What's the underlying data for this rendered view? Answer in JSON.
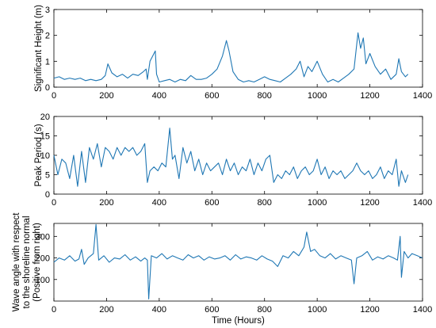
{
  "chart_data": [
    {
      "type": "line",
      "title": "",
      "xlabel": "",
      "ylabel": "Significant Height (m)",
      "xlim": [
        0,
        1400
      ],
      "ylim": [
        0,
        3
      ],
      "xticks": [
        0,
        200,
        400,
        600,
        800,
        1000,
        1200,
        1400
      ],
      "yticks": [
        0,
        1,
        2,
        3
      ],
      "grid": false,
      "color": "#1f77b4",
      "series": [
        {
          "x": [
            0,
            20,
            40,
            60,
            80,
            100,
            120,
            140,
            160,
            180,
            195,
            205,
            220,
            240,
            260,
            280,
            300,
            320,
            340,
            350,
            355,
            365,
            375,
            385,
            390,
            400,
            420,
            440,
            460,
            480,
            500,
            520,
            540,
            560,
            580,
            600,
            620,
            640,
            655,
            665,
            680,
            700,
            720,
            740,
            760,
            780,
            800,
            820,
            840,
            860,
            880,
            900,
            920,
            935,
            950,
            965,
            980,
            1000,
            1020,
            1040,
            1060,
            1080,
            1100,
            1120,
            1140,
            1155,
            1165,
            1175,
            1185,
            1200,
            1220,
            1240,
            1260,
            1280,
            1300,
            1310,
            1320,
            1335,
            1345
          ],
          "y": [
            0.35,
            0.4,
            0.3,
            0.35,
            0.3,
            0.35,
            0.25,
            0.3,
            0.25,
            0.3,
            0.45,
            0.9,
            0.55,
            0.4,
            0.5,
            0.35,
            0.5,
            0.45,
            0.6,
            0.7,
            0.3,
            1.0,
            1.2,
            1.4,
            0.5,
            0.2,
            0.25,
            0.3,
            0.2,
            0.3,
            0.25,
            0.45,
            0.3,
            0.3,
            0.35,
            0.5,
            0.7,
            1.2,
            1.8,
            1.4,
            0.6,
            0.3,
            0.2,
            0.25,
            0.2,
            0.3,
            0.4,
            0.3,
            0.25,
            0.2,
            0.35,
            0.5,
            0.7,
            1.0,
            0.4,
            0.8,
            0.6,
            1.0,
            0.5,
            0.2,
            0.3,
            0.2,
            0.35,
            0.5,
            0.7,
            2.1,
            1.5,
            1.9,
            0.9,
            1.3,
            0.8,
            0.5,
            0.7,
            0.3,
            0.5,
            1.1,
            0.6,
            0.4,
            0.5
          ]
        }
      ]
    },
    {
      "type": "line",
      "title": "",
      "xlabel": "",
      "ylabel": "Peak Period (s)",
      "xlim": [
        0,
        1400
      ],
      "ylim": [
        0,
        20
      ],
      "xticks": [
        0,
        200,
        400,
        600,
        800,
        1000,
        1200,
        1400
      ],
      "yticks": [
        0,
        5,
        10,
        15,
        20
      ],
      "grid": false,
      "color": "#1f77b4",
      "series": [
        {
          "x": [
            0,
            15,
            30,
            45,
            60,
            75,
            90,
            105,
            120,
            135,
            150,
            165,
            180,
            195,
            210,
            225,
            240,
            255,
            270,
            285,
            300,
            315,
            330,
            345,
            355,
            365,
            380,
            395,
            410,
            425,
            440,
            450,
            460,
            475,
            490,
            505,
            520,
            535,
            550,
            565,
            580,
            595,
            610,
            625,
            640,
            655,
            670,
            685,
            700,
            715,
            730,
            745,
            760,
            775,
            790,
            805,
            820,
            835,
            850,
            865,
            880,
            895,
            910,
            925,
            940,
            955,
            970,
            985,
            1000,
            1015,
            1030,
            1045,
            1060,
            1075,
            1090,
            1105,
            1120,
            1135,
            1150,
            1165,
            1180,
            1195,
            1210,
            1225,
            1240,
            1255,
            1270,
            1285,
            1300,
            1310,
            1320,
            1335,
            1345
          ],
          "y": [
            10,
            5,
            9,
            8,
            4,
            10,
            2,
            11,
            3,
            12,
            9,
            13,
            7,
            12,
            11,
            9,
            12,
            10,
            12,
            11,
            12,
            10,
            11,
            13,
            3,
            6,
            7,
            6,
            8,
            7,
            17,
            9,
            10,
            4,
            12,
            8,
            11,
            6,
            9,
            5,
            8,
            6,
            7,
            8,
            5,
            9,
            6,
            8,
            5,
            7,
            6,
            9,
            5,
            8,
            6,
            9,
            10,
            3,
            5,
            4,
            6,
            5,
            7,
            4,
            6,
            7,
            5,
            6,
            9,
            5,
            7,
            4,
            6,
            5,
            6,
            4,
            5,
            6,
            8,
            6,
            5,
            6,
            4,
            5,
            7,
            4,
            6,
            5,
            9,
            2,
            6,
            3,
            5
          ]
        }
      ]
    },
    {
      "type": "line",
      "title": "",
      "xlabel": "Time (Hours)",
      "ylabel": [
        "Wave angle with respect",
        "to the shoreline normal",
        "(Positive from right)"
      ],
      "xlim": [
        0,
        1400
      ],
      "ylim": [
        0,
        360
      ],
      "xticks": [
        0,
        200,
        400,
        600,
        800,
        1000,
        1200,
        1400
      ],
      "yticks": [
        100,
        200,
        300
      ],
      "grid": false,
      "color": "#1f77b4",
      "series": [
        {
          "x": [
            0,
            20,
            40,
            60,
            80,
            95,
            105,
            115,
            130,
            150,
            160,
            170,
            190,
            210,
            230,
            250,
            270,
            290,
            310,
            330,
            345,
            355,
            360,
            370,
            390,
            410,
            430,
            450,
            470,
            490,
            510,
            530,
            550,
            570,
            590,
            610,
            630,
            650,
            670,
            690,
            710,
            730,
            750,
            770,
            790,
            810,
            830,
            850,
            870,
            890,
            910,
            930,
            950,
            960,
            975,
            990,
            1010,
            1030,
            1050,
            1070,
            1090,
            1110,
            1130,
            1140,
            1150,
            1170,
            1190,
            1210,
            1230,
            1250,
            1270,
            1290,
            1305,
            1315,
            1320,
            1330,
            1345,
            1360,
            1380,
            1400
          ],
          "y": [
            180,
            200,
            190,
            210,
            185,
            195,
            240,
            170,
            200,
            220,
            355,
            190,
            210,
            180,
            200,
            195,
            215,
            190,
            205,
            185,
            200,
            190,
            10,
            210,
            200,
            220,
            195,
            210,
            200,
            190,
            215,
            200,
            210,
            190,
            205,
            195,
            200,
            210,
            190,
            215,
            195,
            205,
            200,
            190,
            210,
            195,
            185,
            160,
            210,
            200,
            230,
            210,
            250,
            320,
            230,
            240,
            210,
            200,
            220,
            195,
            210,
            200,
            190,
            80,
            200,
            210,
            230,
            190,
            205,
            195,
            210,
            200,
            190,
            300,
            110,
            230,
            200,
            220,
            210,
            200
          ]
        }
      ]
    }
  ]
}
